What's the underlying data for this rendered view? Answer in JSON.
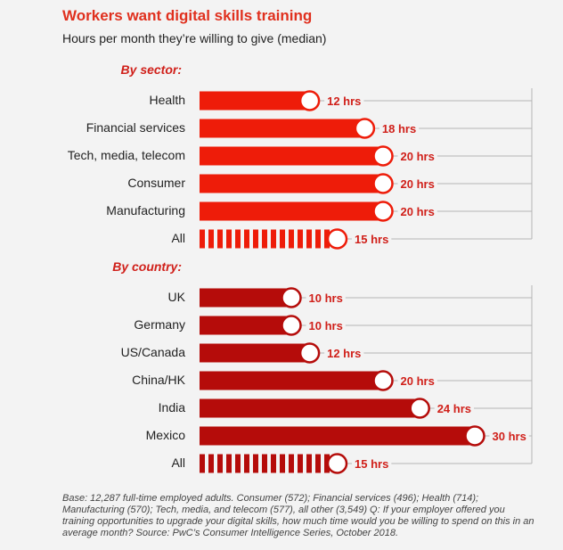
{
  "title": "Workers want digital skills training",
  "subtitle": "Hours per month they’re willing to give (median)",
  "footnote": "Base: 12,287 full-time employed adults. Consumer (572); Financial services (496); Health (714); Manufacturing (570); Tech, media, and telecom (577), all other (3,549) Q: If your employer offered you training opportunities to upgrade your digital skills, how much time would you be willing to spend on this in an average month? Source: PwC’s Consumer Intelligence Series, October 2018.",
  "colors": {
    "sector_bar": "#ee1c09",
    "country_bar": "#b50c0a",
    "value_label": "#d0201a",
    "section_label": "#d0201a"
  },
  "chart_data": {
    "type": "bar",
    "orientation": "horizontal",
    "unit": "hrs",
    "xlim": [
      0,
      30
    ],
    "groups": [
      {
        "name": "By sector:",
        "categories": [
          "Health",
          "Financial services",
          "Tech, media, telecom",
          "Consumer",
          "Manufacturing",
          "All"
        ],
        "values": [
          12,
          18,
          20,
          20,
          20,
          15
        ],
        "value_labels": [
          "12 hrs",
          "18 hrs",
          "20 hrs",
          "20 hrs",
          "20 hrs",
          "15 hrs"
        ],
        "aggregate_last": true
      },
      {
        "name": "By country:",
        "categories": [
          "UK",
          "Germany",
          "US/Canada",
          "China/HK",
          "India",
          "Mexico",
          "All"
        ],
        "values": [
          10,
          10,
          12,
          20,
          24,
          30,
          15
        ],
        "value_labels": [
          "10 hrs",
          "10 hrs",
          "12 hrs",
          "20 hrs",
          "24 hrs",
          "30 hrs",
          "15 hrs"
        ],
        "aggregate_last": true
      }
    ]
  }
}
